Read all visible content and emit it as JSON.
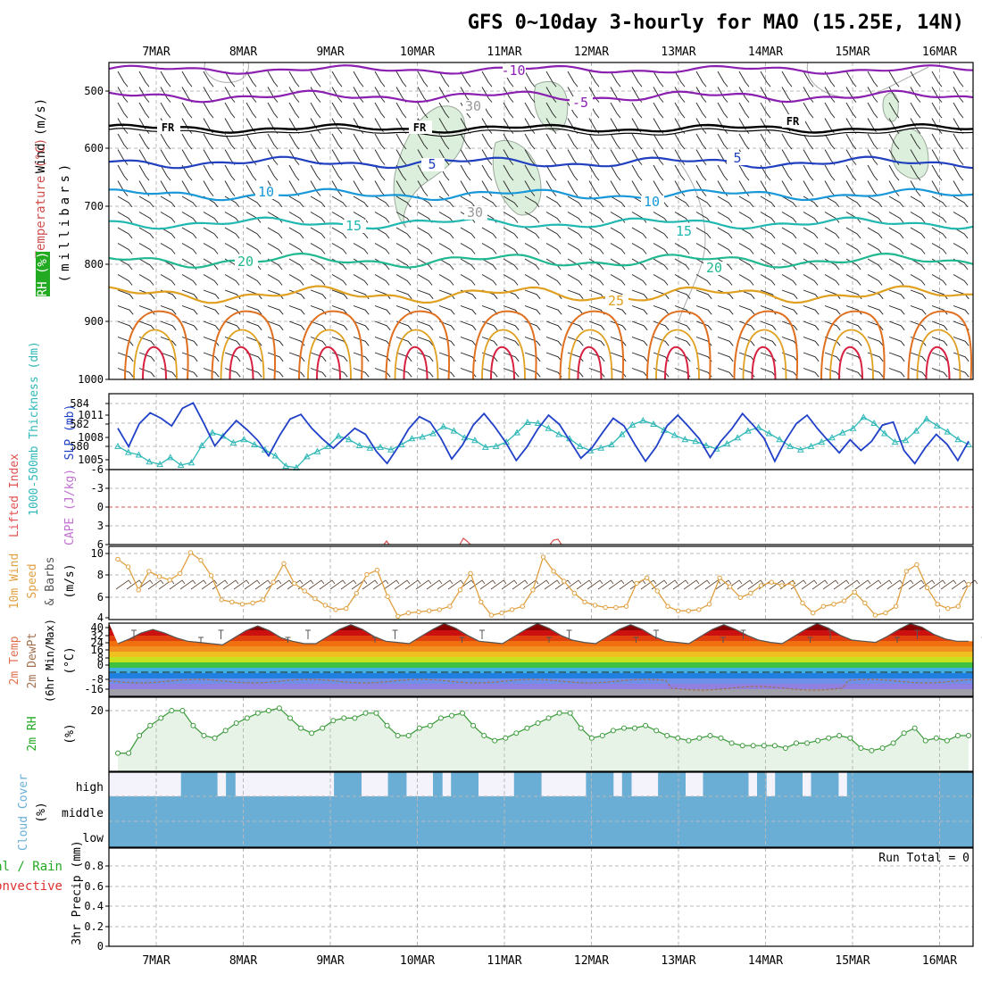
{
  "title": "GFS 0~10day 3-hourly for MAO (15.25E, 14N)",
  "date_labels": [
    "7MAR",
    "8MAR",
    "9MAR",
    "10MAR",
    "11MAR",
    "12MAR",
    "13MAR",
    "14MAR",
    "15MAR",
    "16MAR"
  ],
  "colors": {
    "temp_m10": "#8a1fb0",
    "temp_m5": "#8a1fb0",
    "freezing": "#000000",
    "temp_5": "#2040c0",
    "temp_10": "#1898d8",
    "temp_15": "#20b8b0",
    "temp_20": "#20b890",
    "temp_25": "#e0a020",
    "warm_contour": "#e07020",
    "hot_contour": "#d82040",
    "rh_fill": "#dceedc",
    "slp": "#2040c8",
    "thickness": "#30b8b8",
    "li_ref": "#e05050",
    "wind10": "#e0a040",
    "cloud": "#6aaed6",
    "rh2m": "#3a9a3a"
  },
  "panels": {
    "upper_air": {
      "ylabel_wind": "Wind (m/s)",
      "ylabel_temp": "Temperature (°C)",
      "ylabel_rh": "RH (%)",
      "ylabel_unit": "(millibars)",
      "yticks": [
        "500",
        "600",
        "700",
        "800",
        "900",
        "1000"
      ],
      "contour_labels": [
        "-10",
        "-5",
        "FR",
        "FR",
        "FR",
        "5",
        "5",
        "10",
        "10",
        "15",
        "15",
        "20",
        "20",
        "25",
        "30",
        "30"
      ]
    },
    "pressure": {
      "ylabel_thickness": "1000-500mb Thickness (dm)",
      "ylabel_slp": "SLP (mb)",
      "thickness_ticks": [
        "584",
        "582",
        "580"
      ],
      "slp_ticks": [
        "1011",
        "1008",
        "1005"
      ]
    },
    "stability": {
      "ylabel_li": "Lifted Index",
      "ylabel_cape": "CAPE (J/kg)",
      "li_ticks": [
        "-6",
        "-3",
        "0",
        "3",
        "6"
      ]
    },
    "wind10": {
      "ylabel_a": "10m Wind",
      "ylabel_b": "Speed",
      "ylabel_c": "& Barbs",
      "ylabel_unit": "(m/s)",
      "yticks": [
        "10",
        "8",
        "6",
        "4"
      ]
    },
    "temp2m": {
      "ylabel_a": "2m Temp",
      "ylabel_b": "2m DewPt",
      "ylabel_c": "(6hr Min/Max)",
      "ylabel_unit": "(°C)",
      "yticks": [
        "40",
        "32",
        "24",
        "16",
        "8",
        "0",
        "-8",
        "-16"
      ]
    },
    "rh2m": {
      "ylabel": "2m RH",
      "ylabel_unit": "(%)",
      "yticks": [
        "20"
      ]
    },
    "cloud": {
      "ylabel": "Cloud Cover",
      "ylabel_unit": "(%)",
      "levels": [
        "high",
        "middle",
        "low"
      ]
    },
    "precip": {
      "ylabel_a": "Total / Rain",
      "ylabel_b": "Convective",
      "ylabel_c": "3hr Precip (mm)",
      "yticks": [
        "0.8",
        "0.6",
        "0.4",
        "0.2",
        "0"
      ],
      "run_total": "Run Total = 0"
    }
  },
  "chart_data": [
    {
      "type": "line",
      "name": "SLP",
      "units": "mb",
      "x_step_hours": 3,
      "values": [
        1009.2,
        1006.8,
        1009.8,
        1011.2,
        1010.5,
        1009.5,
        1011.8,
        1012.5,
        1009.8,
        1006.9,
        1008.6,
        1010.2,
        1009.0,
        1007.6,
        1005.6,
        1008.2,
        1010.4,
        1011.0,
        1009.2,
        1007.8,
        1006.6,
        1007.9,
        1009.2,
        1008.4,
        1006.2,
        1004.6,
        1006.7,
        1009.1,
        1010.7,
        1010.0,
        1007.9,
        1005.2,
        1007.0,
        1009.6,
        1011.1,
        1009.4,
        1007.4,
        1005.0,
        1006.8,
        1009.1,
        1010.9,
        1009.7,
        1007.5,
        1005.3,
        1006.6,
        1008.6,
        1010.5,
        1009.5,
        1007.1,
        1004.9,
        1006.8,
        1009.5,
        1010.9,
        1009.4,
        1007.8,
        1005.4,
        1007.5,
        1009.1,
        1011.1,
        1009.6,
        1007.9,
        1004.9,
        1007.6,
        1009.8,
        1010.9,
        1009.1,
        1007.5,
        1006.0,
        1007.7,
        1006.3,
        1007.5,
        1009.6,
        1010.0,
        1006.3,
        1004.6,
        1006.7,
        1008.4,
        1007.1,
        1005.0,
        1007.5
      ]
    },
    {
      "type": "line",
      "name": "1000-500mb Thickness",
      "units": "dm",
      "x_step_hours": 3,
      "values": [
        580.8,
        580.1,
        579.8,
        579.0,
        578.7,
        579.5,
        578.6,
        578.9,
        580.9,
        582.4,
        582.0,
        581.2,
        581.6,
        581.0,
        580.4,
        579.7,
        578.5,
        578.3,
        579.6,
        580.2,
        580.8,
        582.0,
        581.6,
        580.9,
        580.6,
        580.7,
        580.4,
        581.0,
        581.7,
        581.9,
        582.3,
        583.1,
        582.6,
        581.8,
        581.5,
        580.7,
        580.8,
        581.3,
        582.4,
        583.6,
        583.5,
        582.9,
        582.2,
        581.7,
        580.8,
        580.3,
        580.6,
        581.0,
        582.2,
        583.3,
        583.8,
        583.4,
        582.7,
        582.1,
        581.6,
        581.4,
        580.9,
        580.5,
        581.1,
        581.8,
        582.6,
        583.0,
        582.3,
        581.6,
        580.8,
        580.4,
        580.8,
        581.3,
        581.8,
        582.4,
        582.9,
        584.2,
        583.5,
        582.3,
        581.3,
        581.5,
        582.6,
        584.0,
        583.2,
        582.5,
        581.6,
        581.0
      ]
    },
    {
      "type": "line",
      "name": "10m Wind Speed",
      "units": "m/s",
      "x_step_hours": 3,
      "values": [
        9.5,
        8.8,
        6.7,
        8.4,
        7.9,
        7.6,
        8.2,
        10.1,
        9.4,
        8.0,
        5.8,
        5.6,
        5.4,
        5.5,
        5.8,
        7.4,
        9.1,
        7.3,
        6.6,
        5.9,
        5.3,
        4.9,
        5.0,
        6.4,
        8.1,
        8.5,
        6.1,
        4.3,
        4.6,
        4.7,
        4.8,
        4.9,
        5.2,
        6.7,
        8.2,
        5.6,
        4.4,
        4.6,
        4.9,
        5.2,
        6.7,
        9.7,
        8.4,
        7.5,
        6.4,
        5.6,
        5.3,
        5.1,
        5.1,
        5.2,
        7.3,
        7.8,
        6.6,
        5.2,
        4.8,
        4.8,
        4.9,
        5.4,
        7.8,
        7.0,
        6.0,
        6.4,
        7.1,
        7.4,
        7.1,
        7.3,
        5.5,
        4.6,
        5.2,
        5.4,
        5.7,
        6.5,
        5.5,
        4.4,
        4.6,
        5.2,
        8.4,
        9.0,
        6.9,
        5.4,
        5.0,
        5.2,
        7.2
      ]
    },
    {
      "type": "area",
      "name": "2m Temp",
      "units": "°C",
      "x_step_hours": 3,
      "values": [
        22,
        26,
        31,
        34,
        31,
        27,
        24,
        23,
        22,
        21,
        27,
        33,
        37,
        33,
        27,
        24,
        22,
        22,
        28,
        34,
        38,
        34,
        28,
        24,
        23,
        22,
        28,
        34,
        39,
        35,
        29,
        24,
        23,
        22,
        28,
        34,
        39,
        35,
        29,
        25,
        23,
        22,
        28,
        34,
        38,
        34,
        28,
        24,
        23,
        22,
        28,
        34,
        38,
        34,
        29,
        25,
        23,
        22,
        28,
        34,
        39,
        35,
        29,
        25,
        24,
        23,
        28,
        34,
        39,
        36,
        30,
        26,
        24,
        24
      ]
    },
    {
      "type": "area",
      "name": "2m RH",
      "units": "%",
      "x_step_hours": 3,
      "values": [
        3,
        3,
        10,
        14,
        17,
        20,
        20,
        14,
        10,
        9,
        12,
        15,
        17,
        19,
        20,
        21,
        17,
        13,
        11,
        13,
        16,
        17,
        17,
        19,
        19,
        14,
        10,
        10,
        13,
        14,
        17,
        18,
        19,
        14,
        10,
        8,
        9,
        11,
        13,
        15,
        17,
        19,
        19,
        13,
        9,
        10,
        12,
        13,
        13,
        14,
        12,
        10,
        9,
        8,
        9,
        10,
        9,
        7,
        6,
        6,
        6,
        6,
        5,
        7,
        7,
        8,
        9,
        10,
        9,
        5,
        4,
        5,
        7,
        11,
        13,
        8,
        9,
        8,
        10,
        10
      ]
    },
    {
      "type": "table",
      "name": "3hr Precip",
      "units": "mm",
      "run_total": 0,
      "values": []
    }
  ]
}
